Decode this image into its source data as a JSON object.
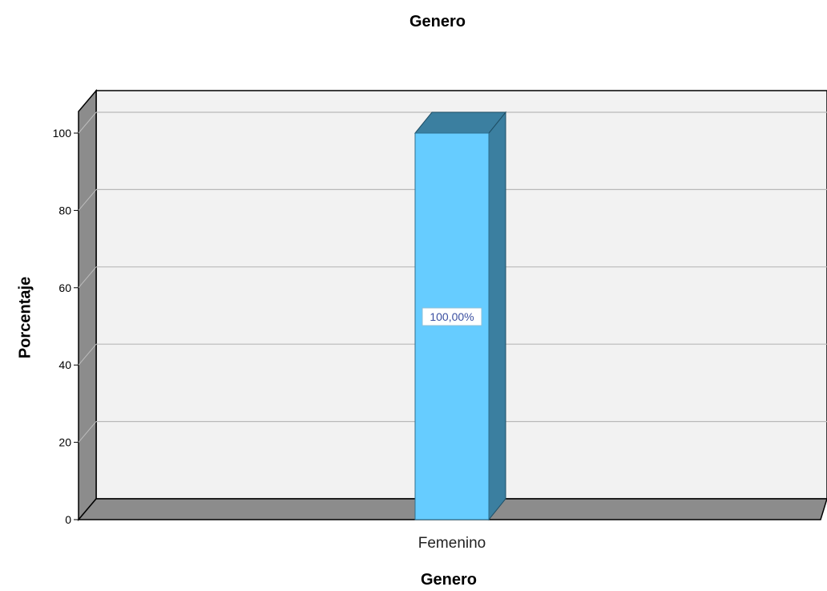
{
  "chart_data": {
    "type": "bar",
    "title": "Genero",
    "xlabel": "Genero",
    "ylabel": "Porcentaje",
    "categories": [
      "Femenino"
    ],
    "values": [
      100
    ],
    "data_labels": [
      "100,00%"
    ],
    "yticks": [
      0,
      20,
      40,
      60,
      80,
      100
    ],
    "ylim": [
      0,
      105
    ],
    "grid": true,
    "legend": "none",
    "colors": {
      "bar_front": "#66ccff",
      "bar_side": "#3b7fa0",
      "bar_top": "#3b7fa0",
      "floor": "#8c8c8c",
      "back_wall": "#f2f2f2",
      "left_wall": "#8c8c8c",
      "gridline": "#b9b9b9"
    }
  }
}
